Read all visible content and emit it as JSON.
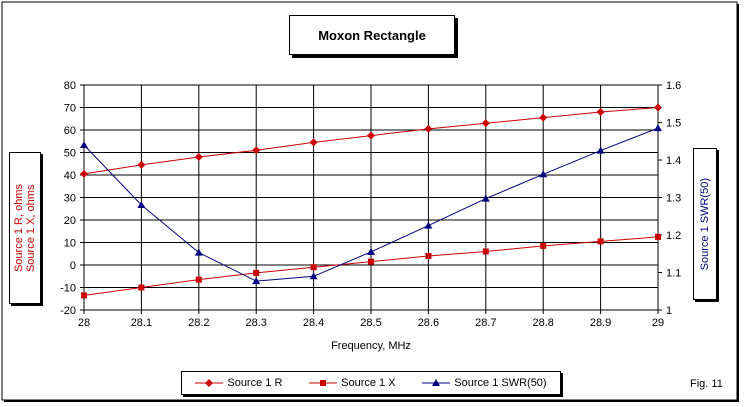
{
  "chart_data": {
    "type": "line",
    "title": "Moxon Rectangle",
    "xlabel": "Frequency, MHz",
    "ylabel_left": "Source 1 R, ohms\nSource 1 X, ohms",
    "ylabel_right": "Source 1 SWR(50)",
    "x": [
      28,
      28.1,
      28.2,
      28.3,
      28.4,
      28.5,
      28.6,
      28.7,
      28.8,
      28.9,
      29
    ],
    "x_tick_labels": [
      "28",
      "28.1",
      "28.2",
      "28.3",
      "28.4",
      "28.5",
      "28.6",
      "28.7",
      "28.8",
      "28.9",
      "29"
    ],
    "ylim_left": [
      -20,
      80
    ],
    "y_left_ticks": [
      -20,
      -10,
      0,
      10,
      20,
      30,
      40,
      50,
      60,
      70,
      80
    ],
    "ylim_right": [
      1,
      1.6
    ],
    "y_right_ticks": [
      "1",
      "1.1",
      "1.2",
      "1.3",
      "1.4",
      "1.5",
      "1.6"
    ],
    "grid": true,
    "legend_position": "bottom",
    "series": [
      {
        "name": "Source 1 R",
        "axis": "left",
        "marker": "diamond",
        "color": "#cc0000",
        "values": [
          40.5,
          44.5,
          48.0,
          51.0,
          54.5,
          57.5,
          60.5,
          63.0,
          65.5,
          68.0,
          70.0
        ]
      },
      {
        "name": "Source 1 X",
        "axis": "left",
        "marker": "square",
        "color": "#cc0000",
        "values": [
          -13.5,
          -10.0,
          -6.5,
          -3.5,
          -1.0,
          1.5,
          4.0,
          6.0,
          8.5,
          10.5,
          12.5
        ]
      },
      {
        "name": "Source 1 SWR(50)",
        "axis": "right",
        "marker": "triangle",
        "color": "#000080",
        "values": [
          1.44,
          1.28,
          1.153,
          1.077,
          1.09,
          1.155,
          1.225,
          1.297,
          1.362,
          1.425,
          1.485
        ]
      }
    ]
  },
  "figure_label": "Fig. 11"
}
